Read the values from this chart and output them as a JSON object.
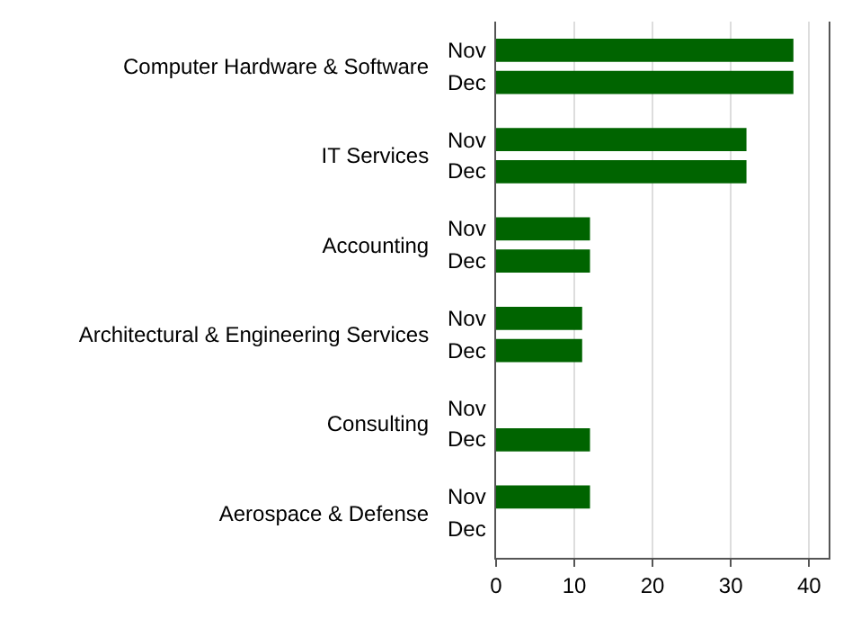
{
  "chart_data": {
    "type": "bar",
    "orientation": "horizontal",
    "categories": [
      "Computer Hardware & Software",
      "IT Services",
      "Accounting",
      "Architectural & Engineering Services",
      "Consulting",
      "Aerospace & Defense"
    ],
    "series": [
      {
        "name": "Nov",
        "color": "#006400",
        "values": [
          38,
          32,
          12,
          11,
          null,
          12
        ]
      },
      {
        "name": "Dec",
        "color": "#006400",
        "values": [
          38,
          32,
          12,
          11,
          12,
          null
        ]
      }
    ],
    "xlim": [
      0,
      42.5
    ],
    "xticks": [
      0,
      10,
      20,
      30,
      40
    ],
    "grid": "x",
    "legend": false
  }
}
